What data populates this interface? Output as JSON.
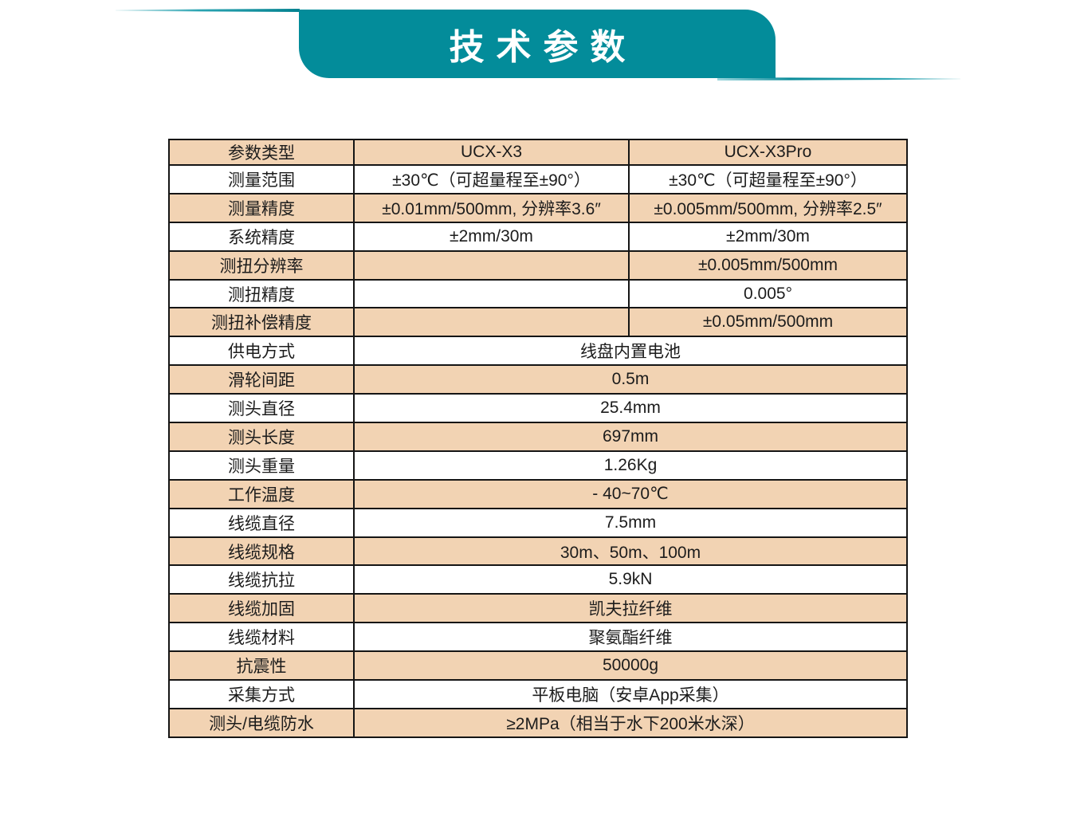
{
  "theme": {
    "accent_teal": "#038c9a",
    "row_shade_peach": "#f2d3b3",
    "row_plain_white": "#ffffff",
    "table_border": "#151515",
    "title_text_color": "#ffffff"
  },
  "header": {
    "title": "技术参数"
  },
  "table": {
    "columns": [
      "参数类型",
      "UCX-X3",
      "UCX-X3Pro"
    ],
    "rows": [
      {
        "label": "测量范围",
        "values": [
          "±30℃（可超量程至±90°）",
          "±30℃（可超量程至±90°）"
        ]
      },
      {
        "label": "测量精度",
        "values": [
          "±0.01mm/500mm, 分辨率3.6″",
          "±0.005mm/500mm, 分辨率2.5″"
        ]
      },
      {
        "label": "系统精度",
        "values": [
          "±2mm/30m",
          "±2mm/30m"
        ]
      },
      {
        "label": "测扭分辨率",
        "values": [
          "",
          "±0.005mm/500mm"
        ]
      },
      {
        "label": "测扭精度",
        "values": [
          "",
          "0.005°"
        ]
      },
      {
        "label": "测扭补偿精度",
        "values": [
          "",
          "±0.05mm/500mm"
        ]
      },
      {
        "label": "供电方式",
        "values": [
          "线盘内置电池"
        ]
      },
      {
        "label": "滑轮间距",
        "values": [
          "0.5m"
        ]
      },
      {
        "label": "测头直径",
        "values": [
          "25.4mm"
        ]
      },
      {
        "label": "测头长度",
        "values": [
          "697mm"
        ]
      },
      {
        "label": "测头重量",
        "values": [
          "1.26Kg"
        ]
      },
      {
        "label": "工作温度",
        "values": [
          "- 40~70℃"
        ]
      },
      {
        "label": "线缆直径",
        "values": [
          "7.5mm"
        ]
      },
      {
        "label": "线缆规格",
        "values": [
          "30m、50m、100m"
        ]
      },
      {
        "label": "线缆抗拉",
        "values": [
          "5.9kN"
        ]
      },
      {
        "label": "线缆加固",
        "values": [
          "凯夫拉纤维"
        ]
      },
      {
        "label": "线缆材料",
        "values": [
          "聚氨酯纤维"
        ]
      },
      {
        "label": "抗震性",
        "values": [
          "50000g"
        ]
      },
      {
        "label": "采集方式",
        "values": [
          "平板电脑（安卓App采集）"
        ]
      },
      {
        "label": "测头/电缆防水",
        "values": [
          "≥2MPa（相当于水下200米水深）"
        ]
      }
    ]
  }
}
